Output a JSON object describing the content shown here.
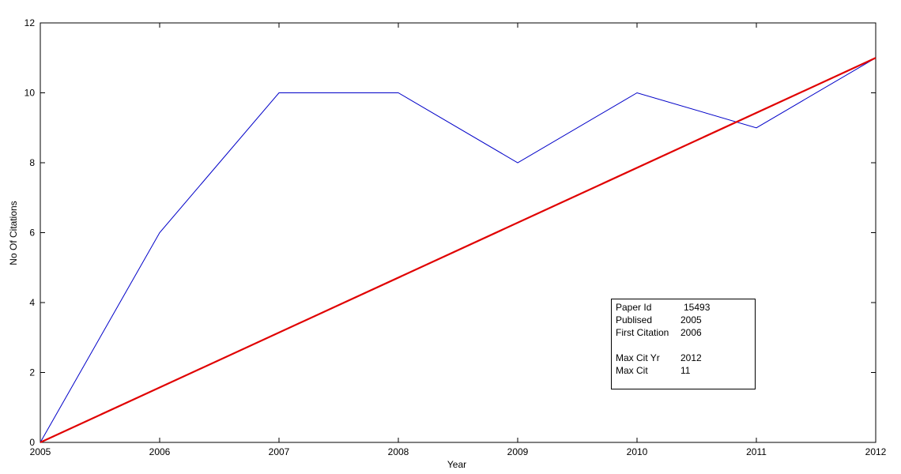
{
  "chart_data": {
    "type": "line",
    "title": "",
    "xlabel": "Year",
    "ylabel": "No Of Citations",
    "xlim": [
      2005,
      2012
    ],
    "ylim": [
      0,
      12
    ],
    "x_ticks": [
      "2005",
      "2006",
      "2007",
      "2008",
      "2009",
      "2010",
      "2011",
      "2012"
    ],
    "y_ticks": [
      "0",
      "2",
      "4",
      "6",
      "8",
      "10",
      "12"
    ],
    "grid": false,
    "series": [
      {
        "color": "#0000c8",
        "x": [
          2005,
          2006,
          2007,
          2008,
          2009,
          2010,
          2011,
          2012
        ],
        "y": [
          0,
          6,
          10,
          10,
          8,
          10,
          9,
          11
        ]
      },
      {
        "color": "#e00000",
        "x": [
          2005,
          2012
        ],
        "y": [
          0,
          11
        ]
      }
    ]
  },
  "info_box": {
    "rows": [
      {
        "key": "Paper Id",
        "value": "15493"
      },
      {
        "key": "Publised",
        "value": "2005"
      },
      {
        "key": "First Citation",
        "value": "2006"
      },
      {
        "key": "Max Cit Yr",
        "value": "2012"
      },
      {
        "key": "Max Cit",
        "value": "11"
      }
    ]
  }
}
